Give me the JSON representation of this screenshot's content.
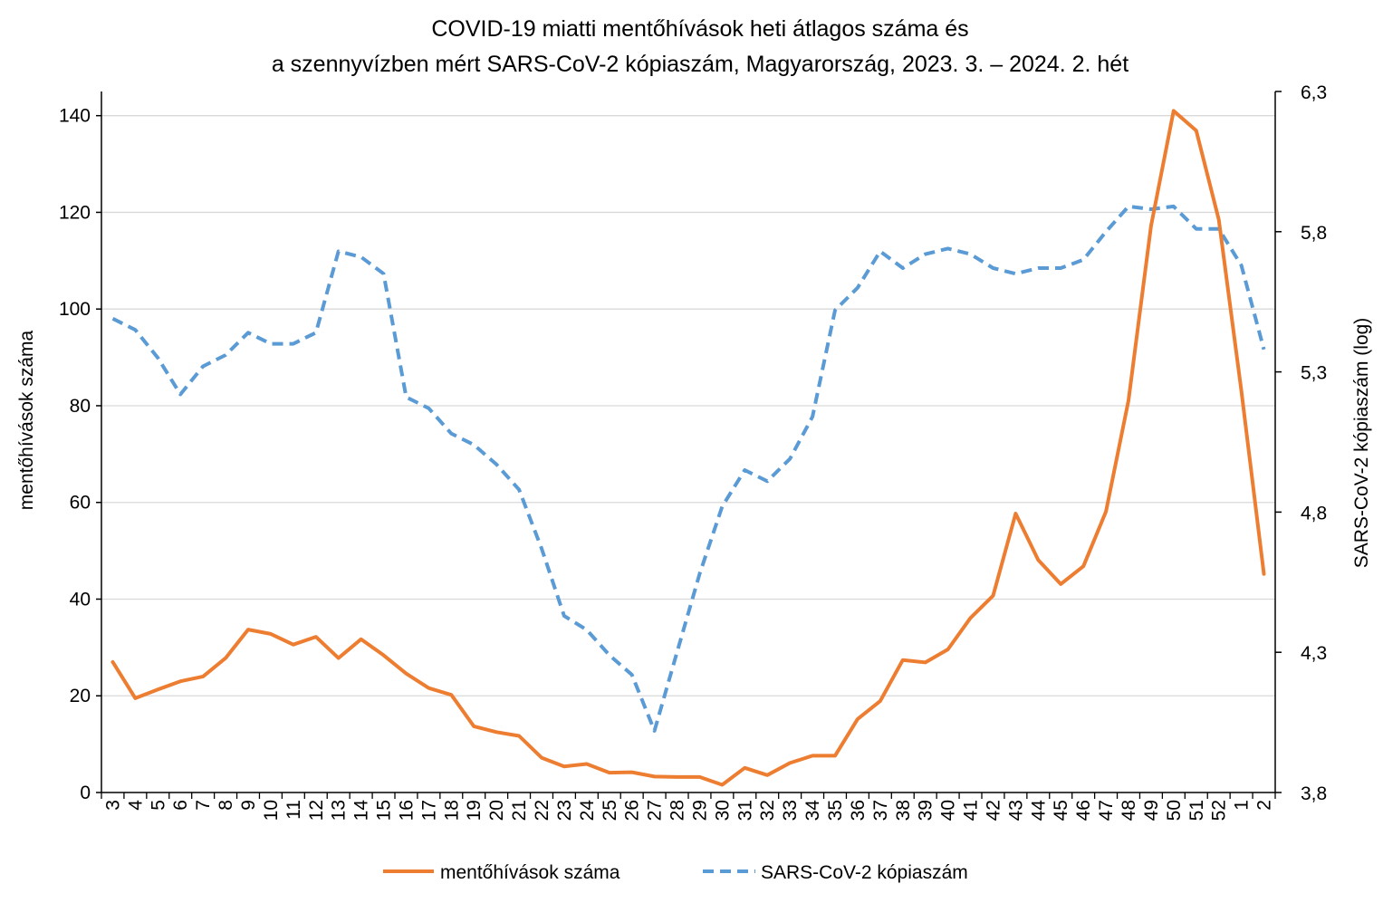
{
  "chart_data": {
    "type": "line",
    "title": "COVID-19 miatti mentőhívások heti átlagos száma és",
    "subtitle": "a szennyvízben mért SARS-CoV-2 kópiaszám, Magyarország, 2023. 3. – 2024. 2. hét",
    "ylabel": "mentőhívások száma",
    "y2label": "SARS-CoV-2 kópiaszám (log)",
    "ylim": [
      0,
      145
    ],
    "y2lim": [
      3.8,
      6.3
    ],
    "yticks": [
      "0",
      "20",
      "40",
      "60",
      "80",
      "100",
      "120",
      "140"
    ],
    "y2ticks": [
      "3,8",
      "4,3",
      "4,8",
      "5,3",
      "5,8",
      "6,3"
    ],
    "grid": true,
    "legend_position": "bottom",
    "categories": [
      "3",
      "4",
      "5",
      "6",
      "7",
      "8",
      "9",
      "10",
      "11",
      "12",
      "13",
      "14",
      "15",
      "16",
      "17",
      "18",
      "19",
      "20",
      "21",
      "22",
      "23",
      "24",
      "25",
      "26",
      "27",
      "28",
      "29",
      "30",
      "31",
      "32",
      "33",
      "34",
      "35",
      "36",
      "37",
      "38",
      "39",
      "40",
      "41",
      "42",
      "43",
      "44",
      "45",
      "46",
      "47",
      "48",
      "49",
      "50",
      "51",
      "52",
      "1",
      "2"
    ],
    "series": [
      {
        "name": "mentőhívások száma",
        "axis": "left",
        "color": "#ED7D31",
        "style": "solid",
        "values": [
          27,
          19.5,
          21.3,
          23,
          24,
          27.8,
          33.7,
          32.8,
          30.6,
          32.2,
          27.8,
          31.7,
          28.4,
          24.6,
          21.6,
          20.2,
          13.7,
          12.5,
          11.7,
          7.2,
          5.4,
          5.9,
          4.1,
          4.2,
          3.3,
          3.2,
          3.2,
          1.6,
          5.1,
          3.6,
          6.1,
          7.6,
          7.6,
          15.2,
          18.9,
          27.4,
          26.9,
          29.6,
          36.1,
          40.7,
          57.7,
          48.1,
          43.1,
          46.8,
          58.1,
          81.1,
          117.2,
          141,
          136.9,
          118.5,
          83.1,
          45.2
        ]
      },
      {
        "name": "SARS-CoV-2 kópiaszám",
        "axis": "right",
        "color": "#5B9BD5",
        "style": "dashed",
        "values": [
          5.49,
          5.45,
          5.35,
          5.22,
          5.32,
          5.36,
          5.44,
          5.4,
          5.4,
          5.44,
          5.73,
          5.71,
          5.65,
          5.21,
          5.17,
          5.08,
          5.04,
          4.97,
          4.88,
          4.67,
          4.43,
          4.38,
          4.29,
          4.22,
          4.02,
          4.3,
          4.58,
          4.82,
          4.95,
          4.91,
          4.99,
          5.14,
          5.52,
          5.6,
          5.73,
          5.67,
          5.72,
          5.74,
          5.72,
          5.67,
          5.65,
          5.67,
          5.67,
          5.7,
          5.8,
          5.89,
          5.88,
          5.89,
          5.81,
          5.81,
          5.68,
          5.38
        ]
      }
    ]
  }
}
